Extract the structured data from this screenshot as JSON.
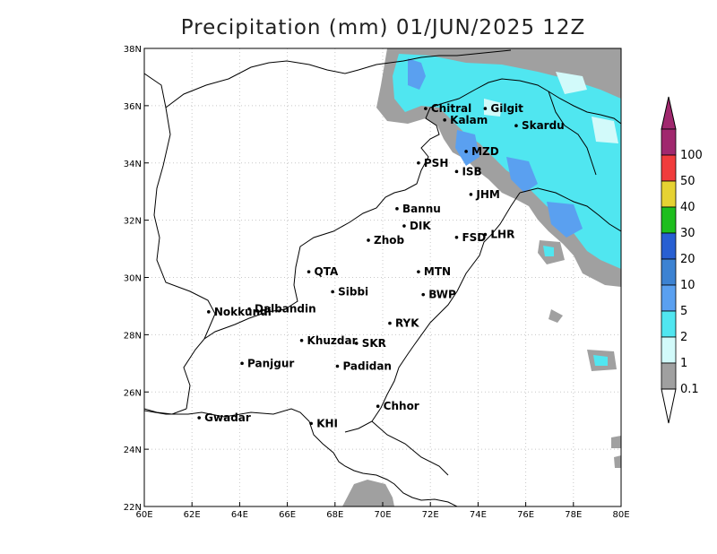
{
  "title": "Precipitation (mm) 01/JUN/2025 12Z",
  "map": {
    "lon_range": [
      60,
      80
    ],
    "lat_range": [
      22,
      38
    ],
    "lon_ticks": [
      "60E",
      "62E",
      "64E",
      "66E",
      "68E",
      "70E",
      "72E",
      "74E",
      "76E",
      "78E",
      "80E"
    ],
    "lat_ticks": [
      "22N",
      "24N",
      "26N",
      "28N",
      "30N",
      "32N",
      "34N",
      "36N",
      "38N"
    ],
    "grid": true
  },
  "cities": [
    {
      "name": "Chitral",
      "lon": 71.8,
      "lat": 35.9
    },
    {
      "name": "Gilgit",
      "lon": 74.3,
      "lat": 35.9
    },
    {
      "name": "Kalam",
      "lon": 72.6,
      "lat": 35.5
    },
    {
      "name": "Skardu",
      "lon": 75.6,
      "lat": 35.3
    },
    {
      "name": "MZD",
      "lon": 73.5,
      "lat": 34.4
    },
    {
      "name": "PSH",
      "lon": 71.5,
      "lat": 34.0
    },
    {
      "name": "ISB",
      "lon": 73.1,
      "lat": 33.7
    },
    {
      "name": "JHM",
      "lon": 73.7,
      "lat": 32.9
    },
    {
      "name": "Bannu",
      "lon": 70.6,
      "lat": 32.4
    },
    {
      "name": "DIK",
      "lon": 70.9,
      "lat": 31.8
    },
    {
      "name": "FSD",
      "lon": 73.1,
      "lat": 31.4
    },
    {
      "name": "LHR",
      "lon": 74.3,
      "lat": 31.5
    },
    {
      "name": "Zhob",
      "lon": 69.4,
      "lat": 31.3
    },
    {
      "name": "QTA",
      "lon": 66.9,
      "lat": 30.2
    },
    {
      "name": "MTN",
      "lon": 71.5,
      "lat": 30.2
    },
    {
      "name": "Sibbi",
      "lon": 67.9,
      "lat": 29.5
    },
    {
      "name": "BWP",
      "lon": 71.7,
      "lat": 29.4
    },
    {
      "name": "Dalbandin",
      "lon": 64.4,
      "lat": 28.9
    },
    {
      "name": "Nokkundi",
      "lon": 62.7,
      "lat": 28.8
    },
    {
      "name": "RYK",
      "lon": 70.3,
      "lat": 28.4
    },
    {
      "name": "Khuzdar",
      "lon": 66.6,
      "lat": 27.8
    },
    {
      "name": "SKR",
      "lon": 68.9,
      "lat": 27.7
    },
    {
      "name": "Padidan",
      "lon": 68.1,
      "lat": 26.9
    },
    {
      "name": "Panjgur",
      "lon": 64.1,
      "lat": 27.0
    },
    {
      "name": "Chhor",
      "lon": 69.8,
      "lat": 25.5
    },
    {
      "name": "KHI",
      "lon": 67.0,
      "lat": 24.9
    },
    {
      "name": "Gwadar",
      "lon": 62.3,
      "lat": 25.1
    }
  ],
  "legend": {
    "levels": [
      "0.1",
      "1",
      "2",
      "5",
      "10",
      "20",
      "30",
      "40",
      "50",
      "100"
    ],
    "colors": [
      "#a0a0a0",
      "#d2fafa",
      "#50e6f0",
      "#5aa0f0",
      "#3c82d2",
      "#285fd2",
      "#1ebe1e",
      "#e6d232",
      "#f03c3c",
      "#a0286e"
    ]
  },
  "colors": {
    "frame": "#000000",
    "grid": "#c8c8c8",
    "border": "#000000"
  }
}
